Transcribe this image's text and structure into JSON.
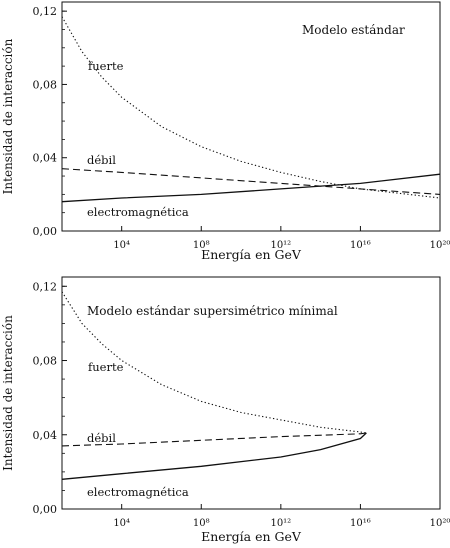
{
  "chart_data": [
    {
      "type": "line",
      "title": "Modelo estándar",
      "xlabel": "Energía en GeV",
      "ylabel": "Intensidad de interacción",
      "x_scale": "log",
      "xlim": [
        10,
        1e+20
      ],
      "ylim": [
        0,
        0.125
      ],
      "x_ticks": [
        {
          "value": 10000.0,
          "label": "10⁴"
        },
        {
          "value": 100000000.0,
          "label": "10⁸"
        },
        {
          "value": 1000000000000.0,
          "label": "10¹²"
        },
        {
          "value": 1e+16,
          "label": "10¹⁶"
        },
        {
          "value": 1e+20,
          "label": "10²⁰"
        }
      ],
      "y_ticks": [
        {
          "value": 0.0,
          "label": "0,00"
        },
        {
          "value": 0.04,
          "label": "0,04"
        },
        {
          "value": 0.08,
          "label": "0,08"
        },
        {
          "value": 0.12,
          "label": "0,12"
        }
      ],
      "series": [
        {
          "name": "fuerte",
          "style": "dotted",
          "x": [
            10,
            100.0,
            1000.0,
            10000.0,
            1000000.0,
            100000000.0,
            10000000000.0,
            1000000000000.0,
            100000000000000.0,
            1e+16,
            1e+18,
            1e+20
          ],
          "y": [
            0.117,
            0.098,
            0.084,
            0.073,
            0.057,
            0.046,
            0.038,
            0.032,
            0.027,
            0.023,
            0.0205,
            0.018
          ]
        },
        {
          "name": "débil",
          "style": "dashed",
          "x": [
            10,
            10000.0,
            100000000.0,
            1000000000000.0,
            1e+16,
            1e+20
          ],
          "y": [
            0.034,
            0.032,
            0.029,
            0.026,
            0.023,
            0.02
          ]
        },
        {
          "name": "electromagnética",
          "style": "solid",
          "x": [
            10,
            10000.0,
            100000000.0,
            1000000000000.0,
            1e+16,
            1e+20
          ],
          "y": [
            0.016,
            0.018,
            0.02,
            0.023,
            0.026,
            0.031
          ]
        }
      ]
    },
    {
      "type": "line",
      "title": "Modelo estándar supersimétrico mínimal",
      "xlabel": "Energía en GeV",
      "ylabel": "Intensidad de interacción",
      "x_scale": "log",
      "xlim": [
        10,
        1e+20
      ],
      "ylim": [
        0,
        0.125
      ],
      "x_ticks": [
        {
          "value": 10000.0,
          "label": "10⁴"
        },
        {
          "value": 100000000.0,
          "label": "10⁸"
        },
        {
          "value": 1000000000000.0,
          "label": "10¹²"
        },
        {
          "value": 1e+16,
          "label": "10¹⁶"
        },
        {
          "value": 1e+20,
          "label": "10²⁰"
        }
      ],
      "y_ticks": [
        {
          "value": 0.0,
          "label": "0,00"
        },
        {
          "value": 0.04,
          "label": "0,04"
        },
        {
          "value": 0.08,
          "label": "0,08"
        },
        {
          "value": 0.12,
          "label": "0,12"
        }
      ],
      "series": [
        {
          "name": "fuerte",
          "style": "dotted",
          "x": [
            10,
            100.0,
            1000.0,
            10000.0,
            1000000.0,
            100000000.0,
            10000000000.0,
            1000000000000.0,
            100000000000000.0,
            1e+16,
            2e+16
          ],
          "y": [
            0.117,
            0.1,
            0.089,
            0.08,
            0.067,
            0.058,
            0.052,
            0.048,
            0.044,
            0.0415,
            0.041
          ]
        },
        {
          "name": "débil",
          "style": "dashed",
          "x": [
            10,
            10000.0,
            100000000.0,
            1000000000000.0,
            1e+16,
            2e+16
          ],
          "y": [
            0.034,
            0.035,
            0.037,
            0.039,
            0.0405,
            0.041
          ]
        },
        {
          "name": "electromagnética",
          "style": "solid",
          "x": [
            10,
            10000.0,
            100000000.0,
            1000000000000.0,
            100000000000000.0,
            1e+16,
            2e+16
          ],
          "y": [
            0.016,
            0.019,
            0.023,
            0.028,
            0.032,
            0.038,
            0.041
          ]
        }
      ]
    }
  ]
}
